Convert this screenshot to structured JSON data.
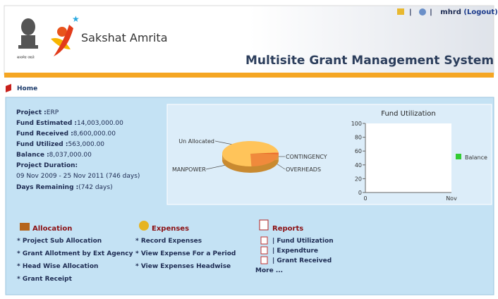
{
  "header": {
    "brand": "Sakshat Amrita",
    "title": "Multisite Grant Management System",
    "user": "mhrd",
    "logout": "(Logout)",
    "separator": "|",
    "emblem_text": "सत्यमेव जयते"
  },
  "breadcrumb": "Home",
  "project": [
    {
      "label": "Project :",
      "value": "ERP"
    },
    {
      "label": "Fund Estimated :",
      "value": "14,003,000.00"
    },
    {
      "label": "Fund Received :",
      "value": "8,600,000.00"
    },
    {
      "label": "Fund Utilized :",
      "value": "563,000.00"
    },
    {
      "label": "Balance :",
      "value": "8,037,000.00"
    },
    {
      "label": "Project Duration:",
      "value": ""
    },
    {
      "label": "",
      "value": "09 Nov 2009 - 25 Nov 2011 (746 days)"
    },
    {
      "label": "Days Remaining :",
      "value": "(742 days)"
    }
  ],
  "sections": [
    {
      "title": "Allocation",
      "items": [
        "* Project Sub Allocation",
        "* Grant Allotment by Ext Agency",
        "* Head Wise Allocation",
        "* Grant Receipt"
      ]
    },
    {
      "title": "Expenses",
      "items": [
        "* Record Expenses",
        "* View Expense For a Period",
        "* View Expenses Headwise"
      ]
    },
    {
      "title": "Reports",
      "items": [
        "| Fund Utilization",
        "| Expendture",
        "| Grant Received"
      ],
      "more": "More ..."
    }
  ],
  "chart_data": [
    {
      "type": "pie",
      "categories": [
        "CONTINGENCY",
        "OVERHEADS",
        "MANPOWER",
        "Un Allocated"
      ],
      "values": [
        1,
        1,
        24,
        74
      ],
      "colors": [
        "#f07030",
        "#e85a20",
        "#f08a3c",
        "#ffc45a"
      ]
    },
    {
      "type": "line",
      "title": "Fund Utilization",
      "categories": [
        "0",
        "Nov"
      ],
      "series": [
        {
          "name": "Balance",
          "color": "#33cc33",
          "values": [
            null,
            null
          ]
        }
      ],
      "ylim": [
        0,
        100
      ],
      "yticks": [
        0,
        20,
        40,
        60,
        80,
        100
      ]
    }
  ]
}
